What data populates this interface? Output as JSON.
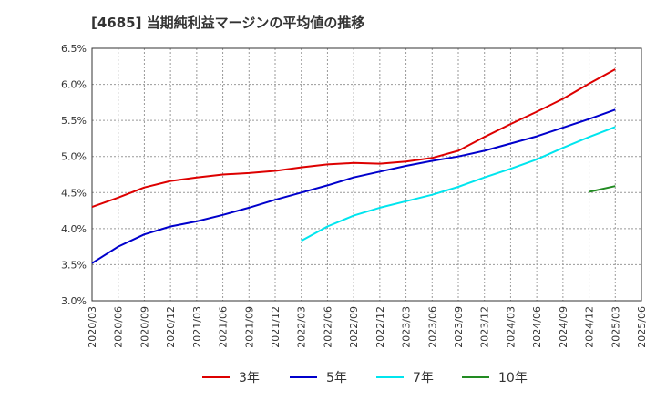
{
  "chart_data": {
    "type": "line",
    "title": "[4685]  当期純利益マージンの平均値の推移",
    "xlabel": "",
    "ylabel": "",
    "ylim": [
      3.0,
      6.5
    ],
    "y_ticks": [
      "3.0%",
      "3.5%",
      "4.0%",
      "4.5%",
      "5.0%",
      "5.5%",
      "6.0%",
      "6.5%"
    ],
    "x_ticks": [
      "2020/03",
      "2020/06",
      "2020/09",
      "2020/12",
      "2021/03",
      "2021/06",
      "2021/09",
      "2021/12",
      "2022/03",
      "2022/06",
      "2022/09",
      "2022/12",
      "2023/03",
      "2023/06",
      "2023/09",
      "2023/12",
      "2024/03",
      "2024/06",
      "2024/09",
      "2024/12",
      "2025/03",
      "2025/06"
    ],
    "grid": true,
    "legend_position": "bottom",
    "series": [
      {
        "name": "3年",
        "color": "#dd0000",
        "x": [
          "2020/03",
          "2020/06",
          "2020/09",
          "2020/12",
          "2021/03",
          "2021/06",
          "2021/09",
          "2021/12",
          "2022/03",
          "2022/06",
          "2022/09",
          "2022/12",
          "2023/03",
          "2023/06",
          "2023/09",
          "2023/12",
          "2024/03",
          "2024/06",
          "2024/09",
          "2024/12",
          "2025/03"
        ],
        "values": [
          4.3,
          4.43,
          4.57,
          4.66,
          4.71,
          4.75,
          4.77,
          4.8,
          4.85,
          4.89,
          4.91,
          4.9,
          4.93,
          4.98,
          5.08,
          5.27,
          5.45,
          5.62,
          5.8,
          6.01,
          6.21
        ]
      },
      {
        "name": "5年",
        "color": "#0000cc",
        "x": [
          "2020/03",
          "2020/06",
          "2020/09",
          "2020/12",
          "2021/03",
          "2021/06",
          "2021/09",
          "2021/12",
          "2022/03",
          "2022/06",
          "2022/09",
          "2022/12",
          "2023/03",
          "2023/06",
          "2023/09",
          "2023/12",
          "2024/03",
          "2024/06",
          "2024/09",
          "2024/12",
          "2025/03"
        ],
        "values": [
          3.52,
          3.75,
          3.92,
          4.03,
          4.1,
          4.19,
          4.29,
          4.4,
          4.5,
          4.6,
          4.71,
          4.79,
          4.87,
          4.94,
          5.0,
          5.08,
          5.18,
          5.28,
          5.4,
          5.52,
          5.65
        ]
      },
      {
        "name": "7年",
        "color": "#00e5ee",
        "x": [
          "2022/03",
          "2022/06",
          "2022/09",
          "2022/12",
          "2023/03",
          "2023/06",
          "2023/09",
          "2023/12",
          "2024/03",
          "2024/06",
          "2024/09",
          "2024/12",
          "2025/03"
        ],
        "values": [
          3.83,
          4.03,
          4.18,
          4.29,
          4.38,
          4.47,
          4.58,
          4.71,
          4.83,
          4.96,
          5.12,
          5.27,
          5.41
        ]
      },
      {
        "name": "10年",
        "color": "#228b22",
        "x": [
          "2024/12",
          "2025/03"
        ],
        "values": [
          4.51,
          4.59
        ]
      }
    ]
  }
}
